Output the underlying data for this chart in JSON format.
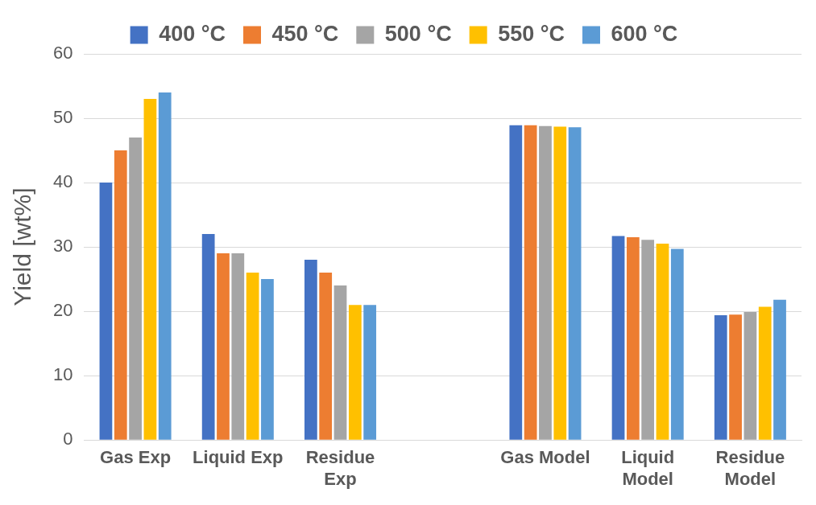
{
  "chart_data": {
    "type": "bar",
    "ylabel": "Yield [wt%]",
    "categories": [
      "Gas Exp",
      "Liquid Exp",
      "Residue Exp",
      null,
      "Gas Model",
      "Liquid Model",
      "Residue Model"
    ],
    "series": [
      {
        "name": "400 °C",
        "color": "#4472c4",
        "values": [
          40,
          32,
          28,
          null,
          48.9,
          31.7,
          19.4
        ]
      },
      {
        "name": "450 °C",
        "color": "#ed7d31",
        "values": [
          45,
          29,
          26,
          null,
          48.9,
          31.5,
          19.5
        ]
      },
      {
        "name": "500 °C",
        "color": "#a5a5a5",
        "values": [
          47,
          29,
          24,
          null,
          48.8,
          31.1,
          19.9
        ]
      },
      {
        "name": "550 °C",
        "color": "#ffc000",
        "values": [
          53,
          26,
          21,
          null,
          48.7,
          30.5,
          20.7
        ]
      },
      {
        "name": "600 °C",
        "color": "#5b9bd5",
        "values": [
          54,
          25,
          21,
          null,
          48.6,
          29.7,
          21.8
        ]
      }
    ],
    "ylim": [
      0,
      60
    ],
    "yticks": [
      0,
      10,
      20,
      30,
      40,
      50,
      60
    ],
    "grid": "y",
    "legend": "top"
  }
}
